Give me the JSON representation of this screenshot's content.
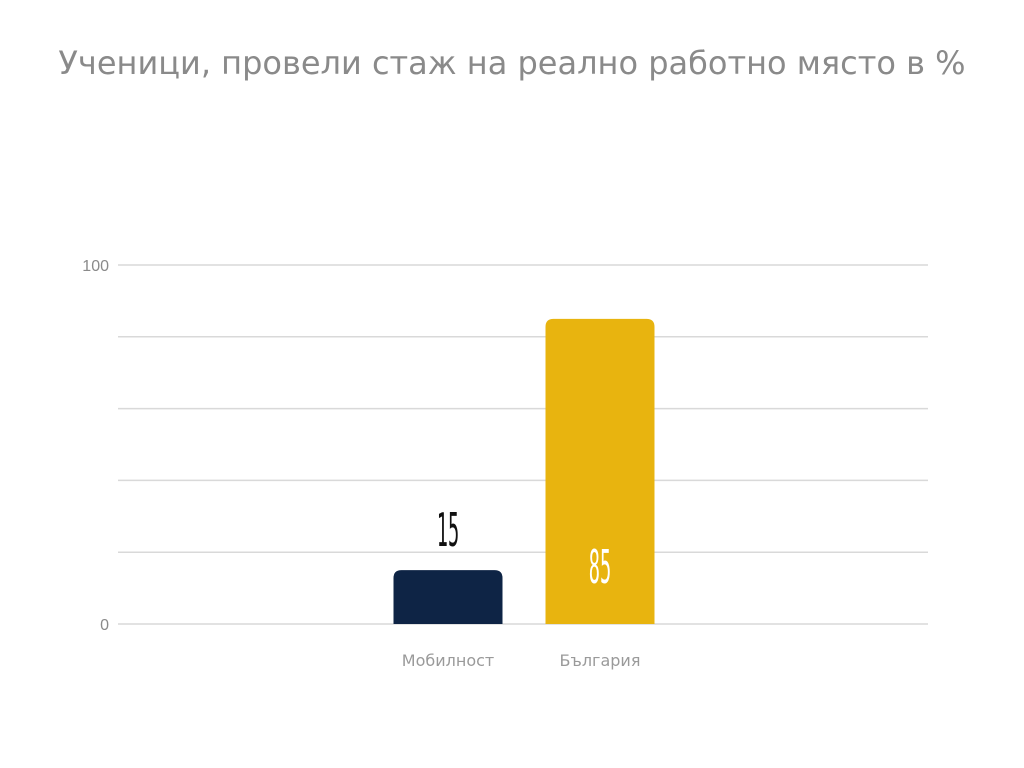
{
  "chart_data": {
    "type": "bar",
    "title": "Ученици, провели стаж на реално работно място в %",
    "xlabel": "",
    "ylabel": "",
    "categories": [
      "Мобилност",
      "България"
    ],
    "values": [
      15,
      85
    ],
    "ylim": [
      0,
      100
    ],
    "y_tick_labels": [
      "0",
      "100"
    ],
    "gridlines": [
      0,
      20,
      40,
      60,
      80,
      100
    ],
    "grid": true,
    "legend": "none",
    "bar_colors": [
      "#0e2445",
      "#e8b40f"
    ],
    "data_label_colors": [
      "#111111",
      "#ffffff"
    ],
    "data_label_position": [
      "outside-end",
      "inside-end"
    ]
  },
  "colors": {
    "title": "#8a8a8a",
    "gridline": "#d9d9d9",
    "axis_text": "#8a8a8a"
  }
}
